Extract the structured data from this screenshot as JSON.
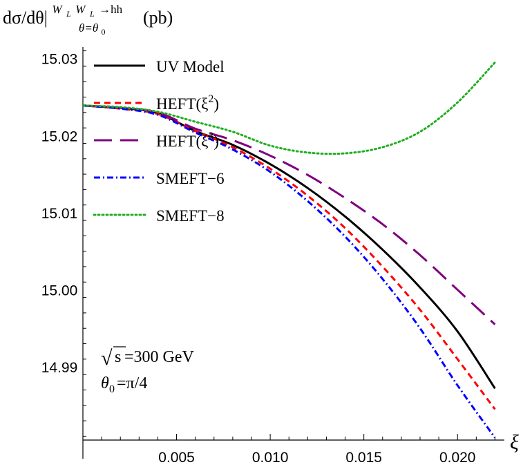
{
  "chart_data": {
    "type": "line",
    "ylabel": {
      "main": "dσ/dθ|",
      "sup": "W",
      "sup_sub1": "L",
      "sup_mid": " W",
      "sup_sub2": "L",
      "sup_tail": "→hh",
      "sub": "θ=θ",
      "sub_sub": "0",
      "unit": "(pb)"
    },
    "xlabel": "ξ",
    "xlim": [
      0.0,
      0.0225
    ],
    "ylim": [
      14.9805,
      15.0315
    ],
    "xticks": [
      0.005,
      0.01,
      0.015,
      0.02
    ],
    "xtick_labels": [
      "0.005",
      "0.010",
      "0.015",
      "0.020"
    ],
    "yticks": [
      14.99,
      15.0,
      15.01,
      15.02,
      15.03
    ],
    "ytick_labels": [
      "14.99",
      "15.00",
      "15.01",
      "15.02",
      "15.03"
    ],
    "grid": false,
    "legend_position": "top-left",
    "annotations": [
      {
        "text": "s",
        "prefix": "√",
        "suffix": " =300 GeV"
      },
      {
        "text": "θ",
        "sub": "0",
        "suffix": "=π/4"
      }
    ],
    "x": [
      0.0,
      0.002,
      0.004,
      0.006,
      0.008,
      0.01,
      0.012,
      0.014,
      0.016,
      0.018,
      0.02,
      0.022
    ],
    "series": [
      {
        "name": "UV Model",
        "color": "#000000",
        "dash": "solid",
        "values": [
          15.0239,
          15.0236,
          15.0229,
          15.0206,
          15.0188,
          15.0163,
          15.0132,
          15.0095,
          15.0052,
          15.0003,
          14.9946,
          14.9872
        ]
      },
      {
        "name": "HEFT(ξ2)",
        "label": "HEFT(ξ",
        "sup": "2",
        "label_tail": ")",
        "color": "#ff0000",
        "dash": "short-dash",
        "values": [
          15.0239,
          15.0235,
          15.0228,
          15.0206,
          15.0185,
          15.0157,
          15.0122,
          15.008,
          15.003,
          14.9974,
          14.991,
          14.9845
        ]
      },
      {
        "name": "HEFT(ξ3)",
        "label": "HEFT(ξ",
        "sup": "3",
        "label_tail": ")",
        "color": "#800080",
        "dash": "long-dash",
        "values": [
          15.0239,
          15.0236,
          15.023,
          15.0209,
          15.0194,
          15.0174,
          15.0149,
          15.0119,
          15.0085,
          15.0045,
          15.0,
          14.9955
        ]
      },
      {
        "name": "SMEFT-6",
        "label": "SMEFT−6",
        "color": "#0000ff",
        "dash": "dash-dot",
        "values": [
          15.0239,
          15.0235,
          15.0227,
          15.0204,
          15.0182,
          15.0153,
          15.0115,
          15.0069,
          15.0014,
          14.995,
          14.9876,
          14.9808
        ]
      },
      {
        "name": "SMEFT-8",
        "label": "SMEFT−8",
        "color": "#1fae1f",
        "dash": "dotted",
        "values": [
          15.0239,
          15.0237,
          15.0231,
          15.0218,
          15.0205,
          15.0187,
          15.0178,
          15.0177,
          15.0185,
          15.0205,
          15.0243,
          15.0295
        ]
      }
    ]
  }
}
